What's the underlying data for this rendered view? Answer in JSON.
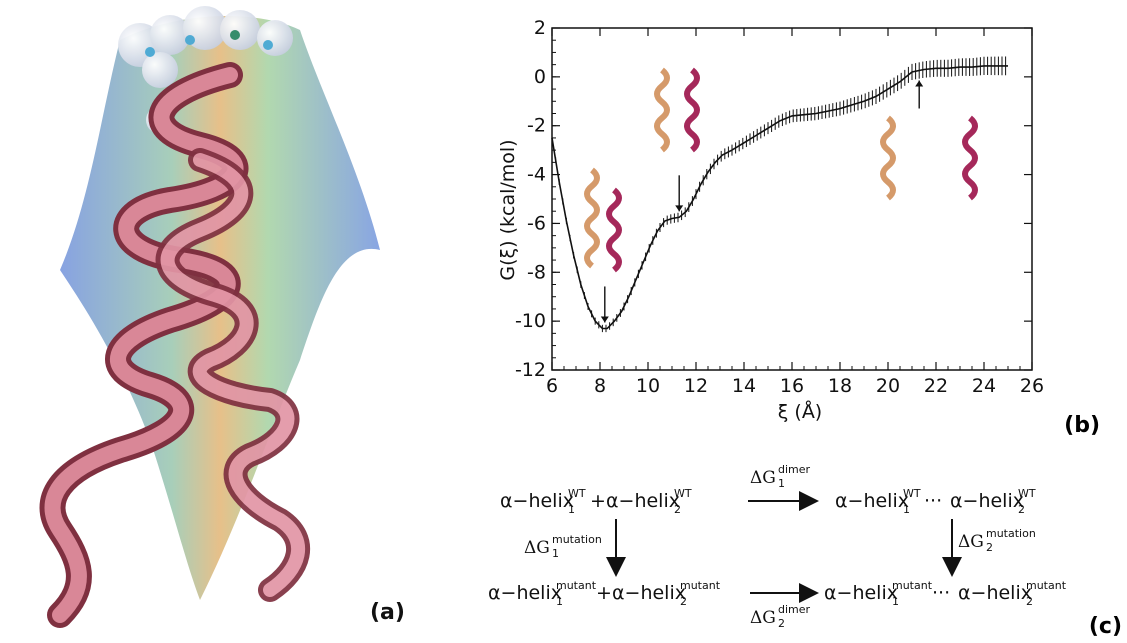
{
  "labels": {
    "a": "(a)",
    "b": "(b)",
    "c": "(c)"
  },
  "chart_data": {
    "type": "line",
    "xlabel": "ξ (Å)",
    "ylabel": "G(ξ) (kcal/mol)",
    "xlim": [
      6,
      26
    ],
    "ylim": [
      -12,
      2
    ],
    "xticks": [
      6,
      8,
      10,
      12,
      14,
      16,
      18,
      20,
      22,
      24,
      26
    ],
    "yticks": [
      2,
      0,
      -2,
      -4,
      -6,
      -8,
      -10,
      -12
    ],
    "series": [
      {
        "error_bars": true,
        "x": [
          6.0,
          6.3,
          6.6,
          6.9,
          7.2,
          7.5,
          7.8,
          8.1,
          8.3,
          8.6,
          8.9,
          9.2,
          9.5,
          9.8,
          10.1,
          10.4,
          10.7,
          11.0,
          11.3,
          11.6,
          11.9,
          12.2,
          12.5,
          12.8,
          13.1,
          13.5,
          14.0,
          14.5,
          15.0,
          15.5,
          16.0,
          16.5,
          17.0,
          17.5,
          18.0,
          18.5,
          19.0,
          19.5,
          20.0,
          20.5,
          21.0,
          21.5,
          22.0,
          22.5,
          23.0,
          23.5,
          24.0,
          24.5,
          25.0
        ],
        "y": [
          -2.5,
          -4.3,
          -5.9,
          -7.3,
          -8.5,
          -9.4,
          -10.0,
          -10.3,
          -10.3,
          -10.0,
          -9.6,
          -9.0,
          -8.3,
          -7.6,
          -6.9,
          -6.3,
          -5.9,
          -5.8,
          -5.75,
          -5.5,
          -5.0,
          -4.4,
          -3.9,
          -3.5,
          -3.2,
          -3.0,
          -2.7,
          -2.4,
          -2.1,
          -1.8,
          -1.6,
          -1.55,
          -1.5,
          -1.4,
          -1.3,
          -1.15,
          -1.0,
          -0.8,
          -0.5,
          -0.2,
          0.2,
          0.3,
          0.35,
          0.35,
          0.4,
          0.4,
          0.45,
          0.45,
          0.45
        ]
      }
    ],
    "arrows_at": [
      8.2,
      11.3,
      21.3
    ]
  },
  "scheme": {
    "row1_left_a": "α−helix",
    "row1_left_a_sup": "WT",
    "row1_left_a_sub": "1",
    "row1_plus": "+",
    "row1_left_b": "α−helix",
    "row1_left_b_sup": "WT",
    "row1_left_b_sub": "2",
    "row1_right_a": "α−helix",
    "row1_right_a_sup": "WT",
    "row1_right_a_sub": "1",
    "row1_dots": "···",
    "row1_right_b": "α−helix",
    "row1_right_b_sup": "WT",
    "row1_right_b_sub": "2",
    "row2_left_a": "α−helix",
    "row2_left_a_sup": "mutant",
    "row2_left_a_sub": "1",
    "row2_plus": "+",
    "row2_left_b": "α−helix",
    "row2_left_b_sup": "mutant",
    "row2_left_b_sub": "2",
    "row2_right_a": "α−helix",
    "row2_right_a_sup": "mutant",
    "row2_right_a_sub": "1",
    "row2_dots": "···",
    "row2_right_b": "α−helix",
    "row2_right_b_sup": "mutant",
    "row2_right_b_sub": "2",
    "dg_top": "ΔG",
    "dg_top_sup": "dimer",
    "dg_top_sub": "1",
    "dg_bottom": "ΔG",
    "dg_bottom_sup": "dimer",
    "dg_bottom_sub": "2",
    "dg_left": "ΔG",
    "dg_left_sup": "mutation",
    "dg_left_sub": "1",
    "dg_right": "ΔG",
    "dg_right_sup": "mutation",
    "dg_right_sub": "2"
  },
  "colors": {
    "ribbon": "#c9707f",
    "ribbon_dark": "#8e3a4a",
    "surface_blue": "#7e9ee0",
    "surface_green": "#a6d3a0",
    "surface_orange": "#e6b679",
    "helix_tan": "#d59a6a",
    "helix_magenta": "#a5285a"
  }
}
